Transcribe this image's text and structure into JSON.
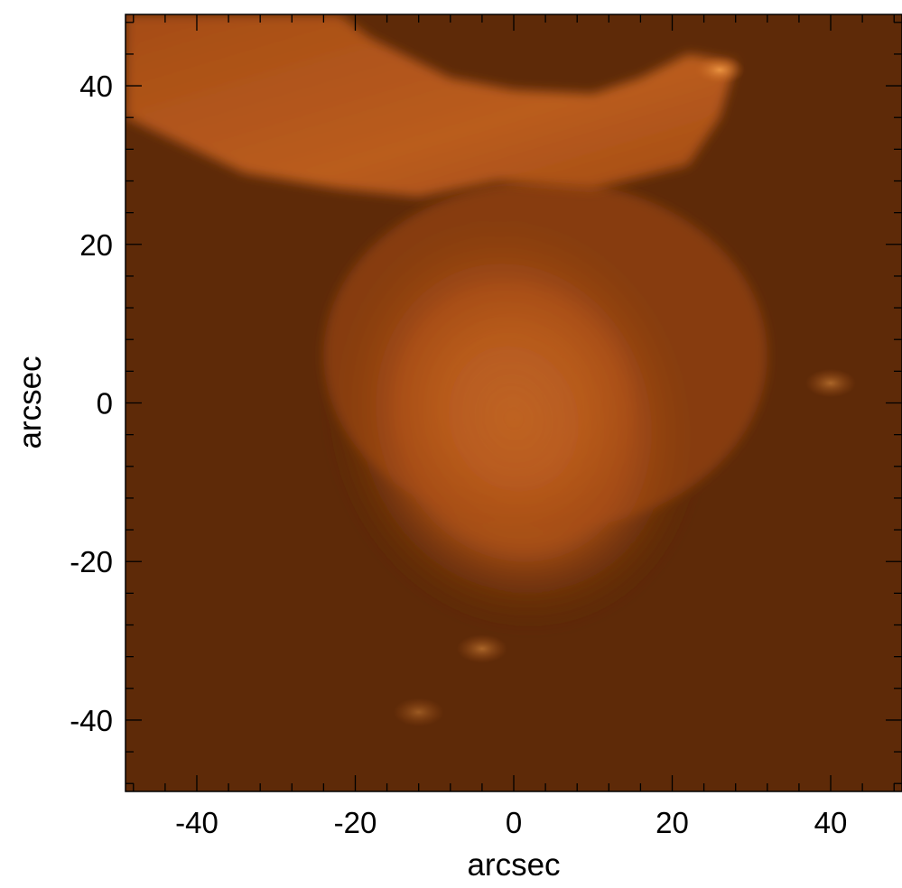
{
  "chart_data": {
    "type": "heatmap",
    "title": "",
    "xlabel": "arcsec",
    "ylabel": "arcsec",
    "xlim": [
      -49,
      49
    ],
    "ylim": [
      -49,
      49
    ],
    "x_ticks": [
      -40,
      -20,
      0,
      20,
      40
    ],
    "y_ticks": [
      -40,
      -20,
      0,
      20,
      40
    ],
    "x_tick_labels": [
      "-40",
      "-20",
      "0",
      "20",
      "40"
    ],
    "y_tick_labels": [
      "-40",
      "-20",
      "0",
      "20",
      "40"
    ],
    "minor_tick_step": 4,
    "grid": false,
    "colormap": [
      "#5e2a08",
      "#8a3d0c",
      "#c4631a",
      "#e98c30",
      "#f7b45c",
      "#fde8b4"
    ],
    "background_color": "#5e2a08",
    "peak": {
      "x": 0,
      "y": 0,
      "level": 1.0
    },
    "features": [
      {
        "kind": "core",
        "x": 0,
        "y": 0,
        "radius": 10,
        "level": 1.0
      },
      {
        "kind": "envelope",
        "x": 0,
        "y": -2,
        "rx": 19,
        "ry": 22,
        "level": 0.55
      },
      {
        "kind": "plume",
        "description_free": true,
        "from": [
          -48,
          40
        ],
        "to": [
          10,
          30
        ],
        "level": 0.45
      },
      {
        "kind": "knot",
        "x": 26,
        "y": 42,
        "level": 0.8
      },
      {
        "kind": "knot",
        "x": 40,
        "y": 2.5,
        "level": 0.5
      },
      {
        "kind": "knot",
        "x": -4,
        "y": -31,
        "level": 0.5
      },
      {
        "kind": "knot",
        "x": -12,
        "y": -39,
        "level": 0.4
      }
    ]
  }
}
